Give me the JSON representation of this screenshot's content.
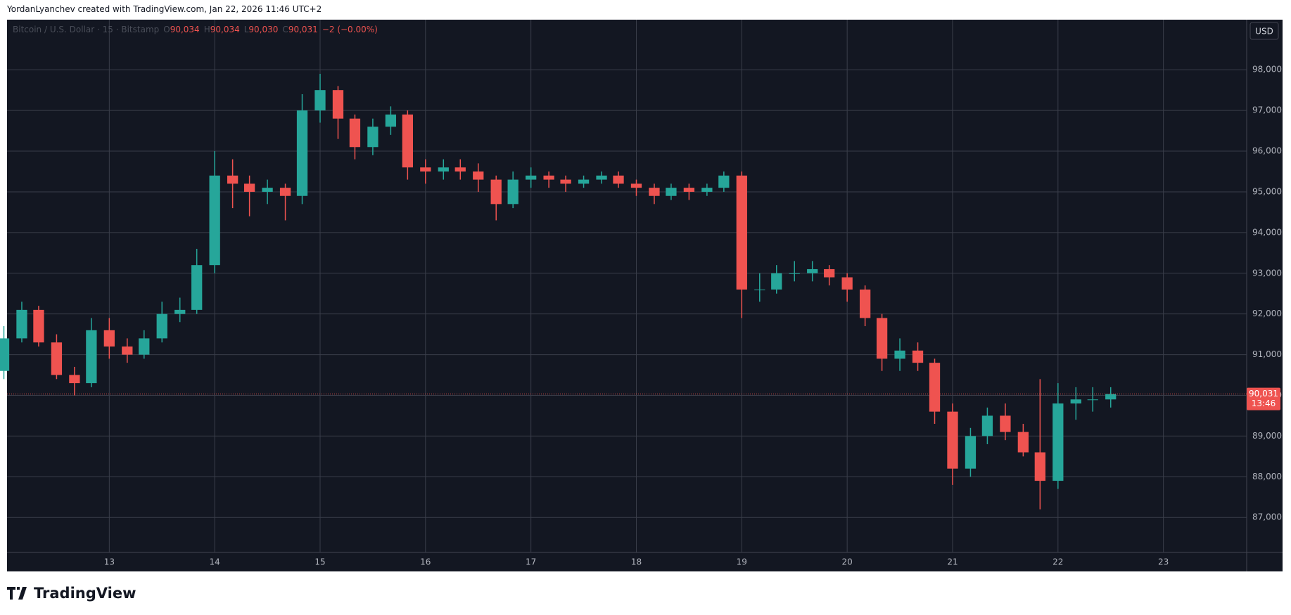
{
  "header": "YordanLyanchev created with TradingView.com, Jan 22, 2026 11:46 UTC+2",
  "footer": "TradingView",
  "chart_data": {
    "type": "candlestick",
    "symbol": "Bitcoin / U.S. Dollar · 15 · Bitstamp",
    "ohlc_legend": [
      {
        "key": "O",
        "label": "90,034"
      },
      {
        "key": "H",
        "label": "90,034"
      },
      {
        "key": "L",
        "label": "90,030"
      },
      {
        "key": "C",
        "label": "90,031"
      }
    ],
    "change": "−2 (−0.00%)",
    "currency": "USD",
    "up_color": "#26a69a",
    "down_color": "#ef5350",
    "grid": true,
    "x": [
      12,
      12.17,
      12.33,
      12.5,
      12.67,
      12.83,
      13,
      13.17,
      13.33,
      13.5,
      13.67,
      13.83,
      14,
      14.17,
      14.33,
      14.5,
      14.67,
      14.83,
      15,
      15.17,
      15.33,
      15.5,
      15.67,
      15.83,
      16,
      16.17,
      16.33,
      16.5,
      16.67,
      16.83,
      17,
      17.17,
      17.33,
      17.5,
      17.67,
      17.83,
      18,
      18.17,
      18.33,
      18.5,
      18.67,
      18.83,
      19,
      19.17,
      19.33,
      19.5,
      19.67,
      19.83,
      20,
      20.17,
      20.33,
      20.5,
      20.67,
      20.83,
      21,
      21.17,
      21.33,
      21.5,
      21.67,
      21.83,
      22,
      22.17,
      22.33,
      22.5
    ],
    "open": [
      90600,
      91400,
      92100,
      91300,
      90500,
      90300,
      91600,
      91200,
      91000,
      91400,
      92000,
      92100,
      93200,
      95400,
      95200,
      95000,
      95100,
      94900,
      97000,
      97500,
      96800,
      96100,
      96600,
      96900,
      95600,
      95500,
      95600,
      95500,
      95300,
      94700,
      95300,
      95400,
      95300,
      95200,
      95300,
      95400,
      95200,
      95100,
      94900,
      95100,
      95000,
      95100,
      95400,
      92600,
      92600,
      93000,
      93000,
      93100,
      92900,
      92600,
      91900,
      90900,
      91100,
      90800,
      89600,
      88200,
      89000,
      89500,
      89100,
      88600,
      87900,
      89800,
      89900,
      89900
    ],
    "high": [
      91700,
      92300,
      92200,
      91500,
      90700,
      91900,
      91900,
      91400,
      91600,
      92300,
      92400,
      93600,
      96000,
      95800,
      95400,
      95300,
      95200,
      97400,
      97900,
      97600,
      96900,
      96800,
      97100,
      97000,
      95800,
      95800,
      95800,
      95700,
      95400,
      95500,
      95600,
      95500,
      95400,
      95400,
      95500,
      95500,
      95300,
      95200,
      95200,
      95200,
      95200,
      95500,
      95500,
      93000,
      93200,
      93300,
      93300,
      93200,
      93000,
      92700,
      92000,
      91400,
      91300,
      90900,
      89800,
      89200,
      89700,
      89800,
      89300,
      90400,
      90300,
      90200,
      90200,
      90200
    ],
    "low": [
      90400,
      91300,
      91200,
      90400,
      90000,
      90200,
      90900,
      90800,
      90900,
      91300,
      91800,
      92000,
      93000,
      94600,
      94400,
      94700,
      94300,
      94700,
      96700,
      96300,
      95800,
      95900,
      96400,
      95300,
      95200,
      95300,
      95300,
      95000,
      94300,
      94600,
      95100,
      95100,
      95000,
      95100,
      95200,
      95100,
      94900,
      94700,
      94800,
      94800,
      94900,
      95000,
      91900,
      92300,
      92500,
      92800,
      92800,
      92700,
      92300,
      91700,
      90600,
      90600,
      90600,
      89300,
      87800,
      88000,
      88800,
      88900,
      88500,
      87200,
      87700,
      89400,
      89600,
      89700
    ],
    "close": [
      91400,
      92100,
      91300,
      90500,
      90300,
      91600,
      91200,
      91000,
      91400,
      92000,
      92100,
      93200,
      95400,
      95200,
      95000,
      95100,
      94900,
      97000,
      97500,
      96800,
      96100,
      96600,
      96900,
      95600,
      95500,
      95600,
      95500,
      95300,
      94700,
      95300,
      95400,
      95300,
      95200,
      95300,
      95400,
      95200,
      95100,
      94900,
      95100,
      95000,
      95100,
      95400,
      92600,
      92600,
      93000,
      93000,
      93100,
      92900,
      92600,
      91900,
      90900,
      91100,
      90800,
      89600,
      88200,
      89000,
      89500,
      89100,
      88600,
      87900,
      89800,
      89900,
      89900,
      90031
    ],
    "xlim": [
      12.03,
      23.79
    ],
    "xticks": [
      13,
      14,
      15,
      16,
      17,
      18,
      19,
      20,
      21,
      22,
      23
    ],
    "ylim": [
      86140,
      99230
    ],
    "yticks": [
      {
        "value": 87000,
        "label": "87,000"
      },
      {
        "value": 88000,
        "label": "88,000"
      },
      {
        "value": 89000,
        "label": "89,000"
      },
      {
        "value": 90000,
        "label": "90,000"
      },
      {
        "value": 91000,
        "label": "91,000"
      },
      {
        "value": 92000,
        "label": "92,000"
      },
      {
        "value": 93000,
        "label": "93,000"
      },
      {
        "value": 94000,
        "label": "94,000"
      },
      {
        "value": 95000,
        "label": "95,000"
      },
      {
        "value": 96000,
        "label": "96,000"
      },
      {
        "value": 97000,
        "label": "97,000"
      },
      {
        "value": 98000,
        "label": "98,000"
      }
    ],
    "last_price": {
      "value": 90031,
      "label": "90,031"
    },
    "countdown": "13:46"
  }
}
